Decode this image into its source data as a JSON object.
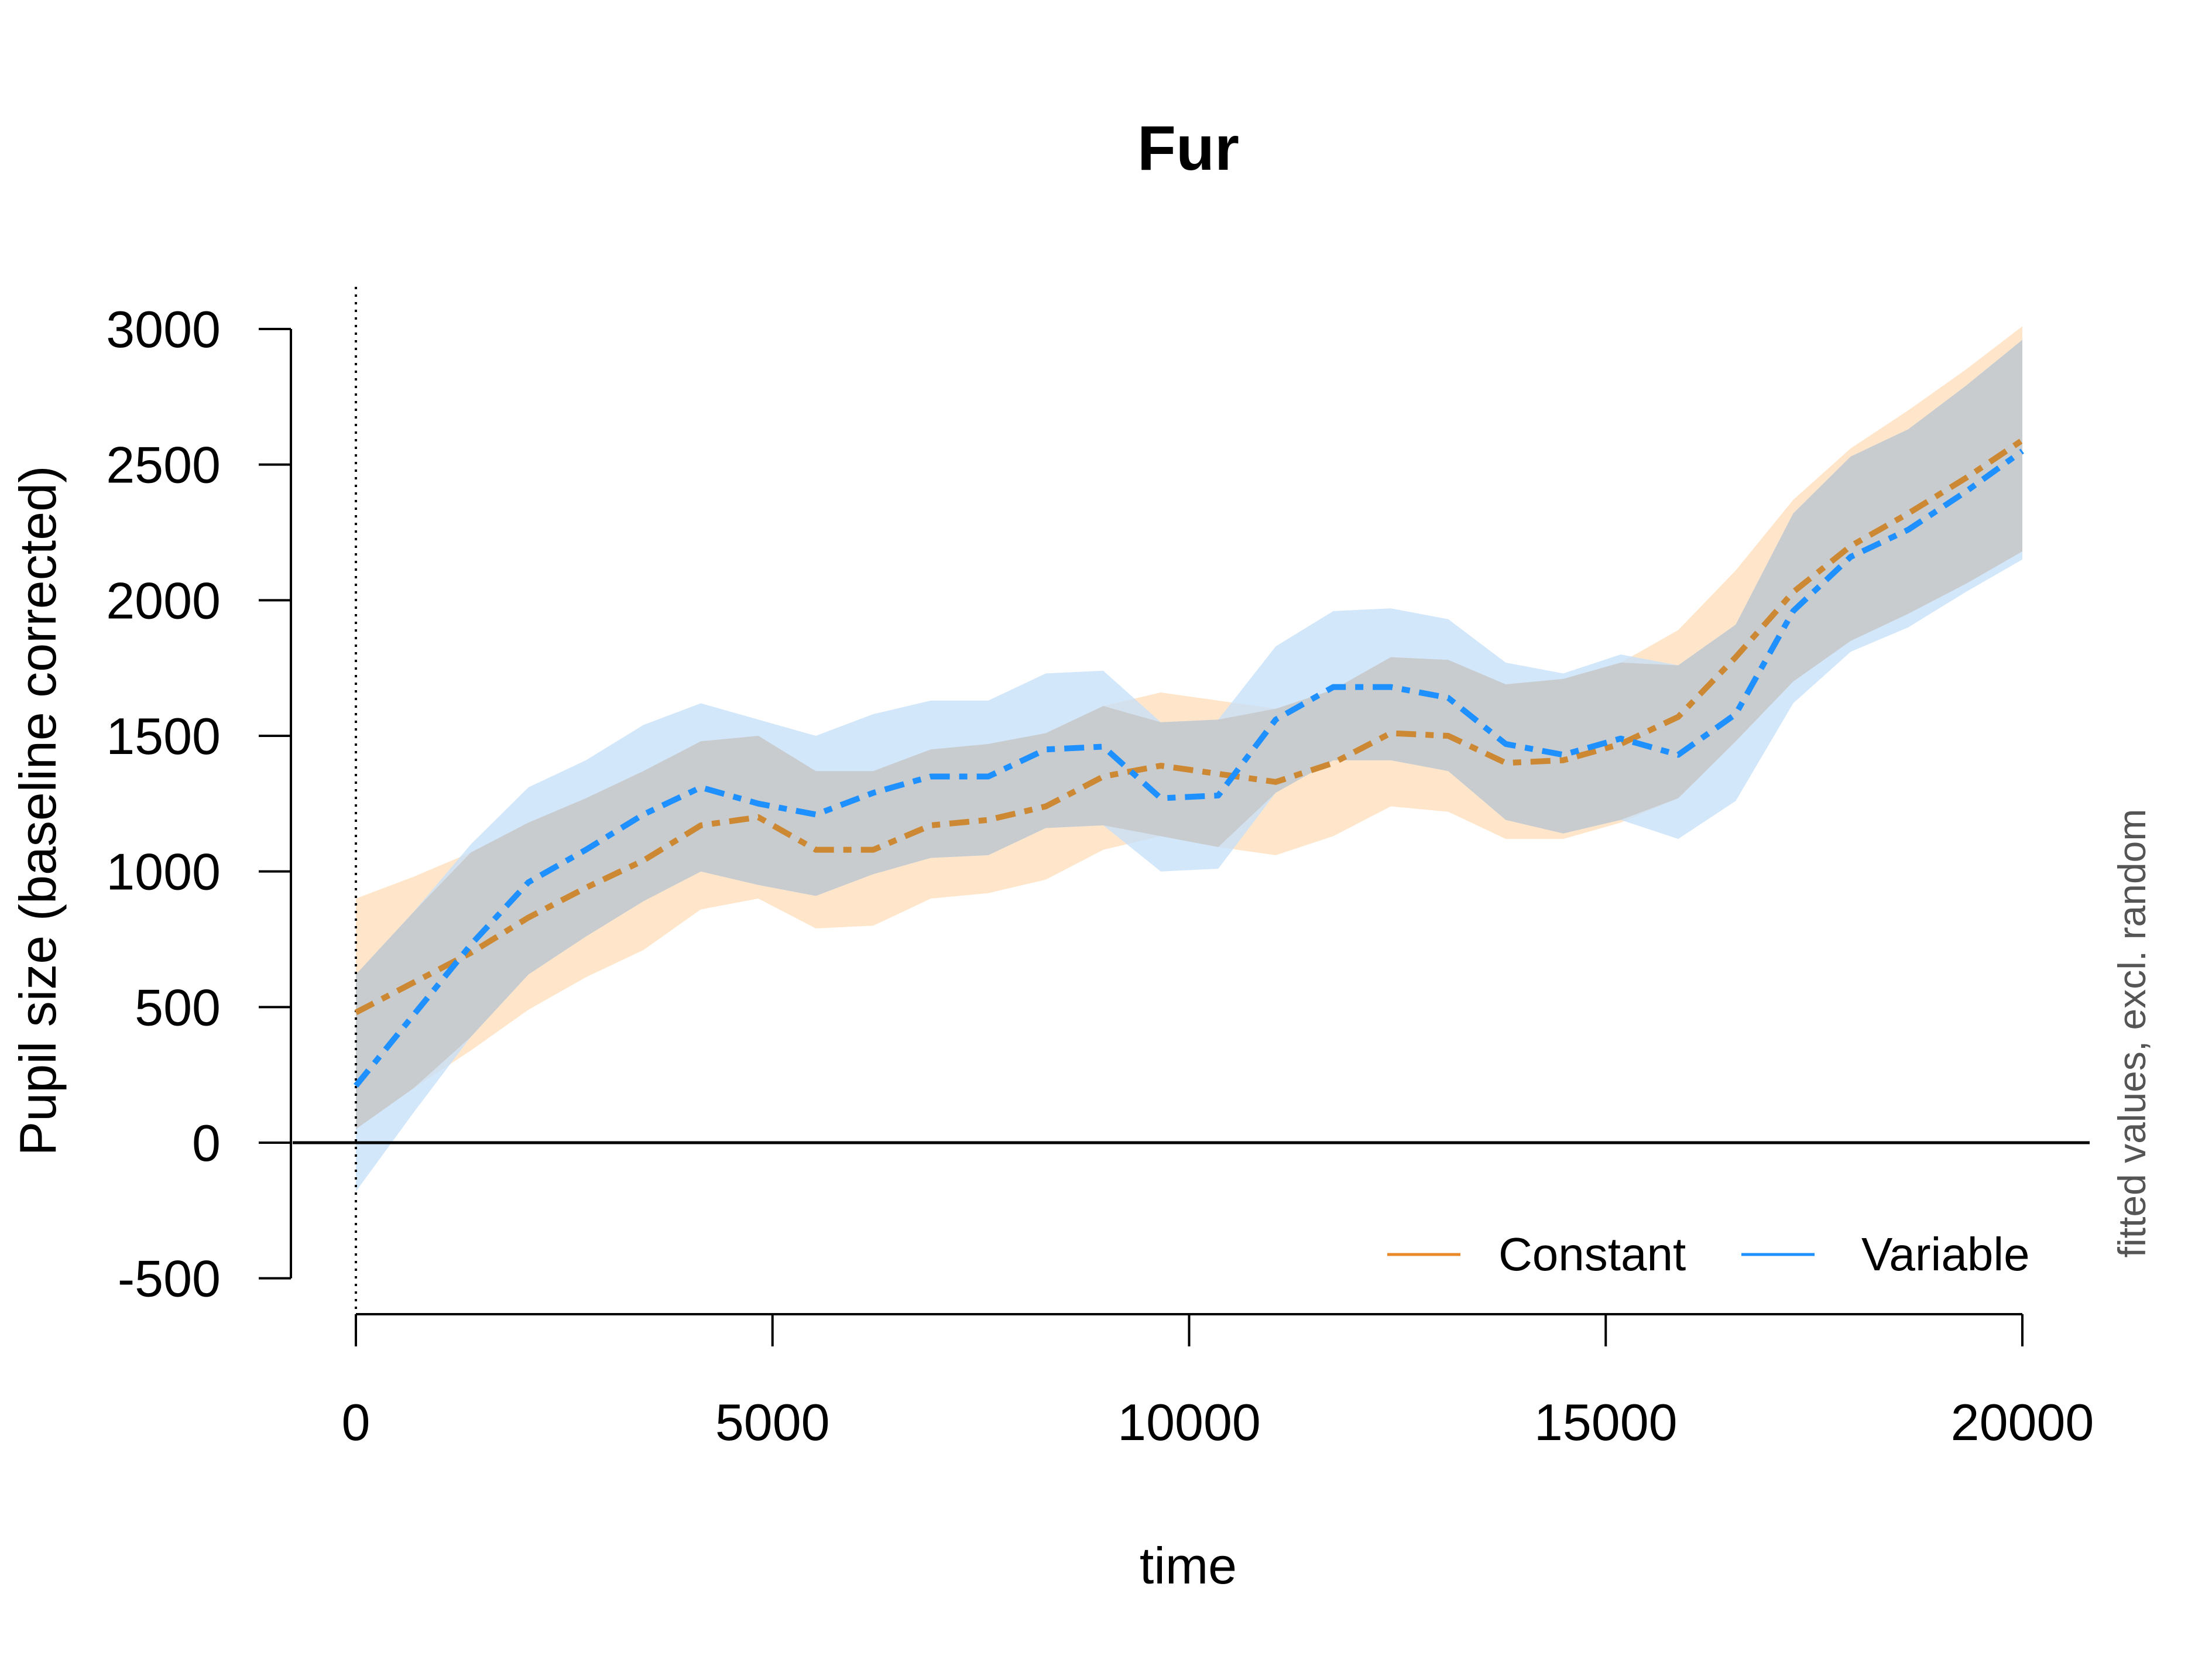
{
  "chart_data": {
    "type": "line",
    "title": "Fur",
    "xlabel": "time",
    "ylabel": "Pupil size (baseline corrected)",
    "side_note": "fitted values, excl. random",
    "xlim": [
      0,
      20000
    ],
    "ylim": [
      -500,
      3000
    ],
    "x_ticks": [
      0,
      5000,
      10000,
      15000,
      20000
    ],
    "y_ticks": [
      -500,
      0,
      500,
      1000,
      1500,
      2000,
      2500,
      3000
    ],
    "reference_hline": 0,
    "reference_vline": 0,
    "legend_position": "bottom-right",
    "x": [
      0,
      690,
      1380,
      2070,
      2760,
      3450,
      4140,
      4830,
      5520,
      6210,
      6900,
      7590,
      8280,
      8970,
      9660,
      10350,
      11040,
      11730,
      12420,
      13110,
      13800,
      14490,
      15180,
      15870,
      16560,
      17250,
      17940,
      18630,
      19320,
      20000
    ],
    "series": [
      {
        "name": "Constant",
        "color": "#CC8833",
        "band_color": "#FFDEB8",
        "legend_color": "#E88A2A",
        "values": [
          480,
          590,
          700,
          830,
          940,
          1040,
          1170,
          1200,
          1080,
          1080,
          1170,
          1190,
          1240,
          1350,
          1390,
          1360,
          1330,
          1400,
          1510,
          1500,
          1400,
          1410,
          1470,
          1570,
          1790,
          2030,
          2200,
          2320,
          2450,
          2590
        ],
        "lower": [
          50,
          200,
          340,
          490,
          610,
          710,
          860,
          900,
          790,
          800,
          900,
          920,
          970,
          1080,
          1130,
          1090,
          1060,
          1130,
          1240,
          1220,
          1120,
          1120,
          1180,
          1270,
          1480,
          1700,
          1850,
          1950,
          2060,
          2180
        ],
        "upper": [
          900,
          980,
          1070,
          1180,
          1270,
          1370,
          1480,
          1500,
          1370,
          1370,
          1450,
          1470,
          1510,
          1610,
          1660,
          1630,
          1600,
          1670,
          1790,
          1780,
          1690,
          1710,
          1770,
          1890,
          2110,
          2370,
          2560,
          2700,
          2850,
          3010
        ]
      },
      {
        "name": "Variable",
        "color": "#1E90FF",
        "band_color": "#C4DFFA",
        "legend_color": "#1E90FF",
        "values": [
          210,
          470,
          730,
          960,
          1080,
          1210,
          1310,
          1250,
          1210,
          1290,
          1350,
          1350,
          1450,
          1460,
          1270,
          1280,
          1560,
          1680,
          1680,
          1640,
          1470,
          1430,
          1490,
          1430,
          1580,
          1960,
          2160,
          2260,
          2400,
          2550
        ],
        "lower": [
          -180,
          110,
          390,
          620,
          760,
          890,
          1000,
          950,
          910,
          990,
          1050,
          1060,
          1160,
          1170,
          1000,
          1010,
          1290,
          1410,
          1410,
          1370,
          1190,
          1140,
          1190,
          1120,
          1260,
          1620,
          1810,
          1900,
          2030,
          2150
        ],
        "upper": [
          620,
          850,
          1100,
          1310,
          1410,
          1540,
          1620,
          1560,
          1500,
          1580,
          1630,
          1630,
          1730,
          1740,
          1550,
          1560,
          1830,
          1960,
          1970,
          1930,
          1770,
          1730,
          1800,
          1760,
          1910,
          2320,
          2530,
          2630,
          2790,
          2960
        ]
      }
    ]
  }
}
